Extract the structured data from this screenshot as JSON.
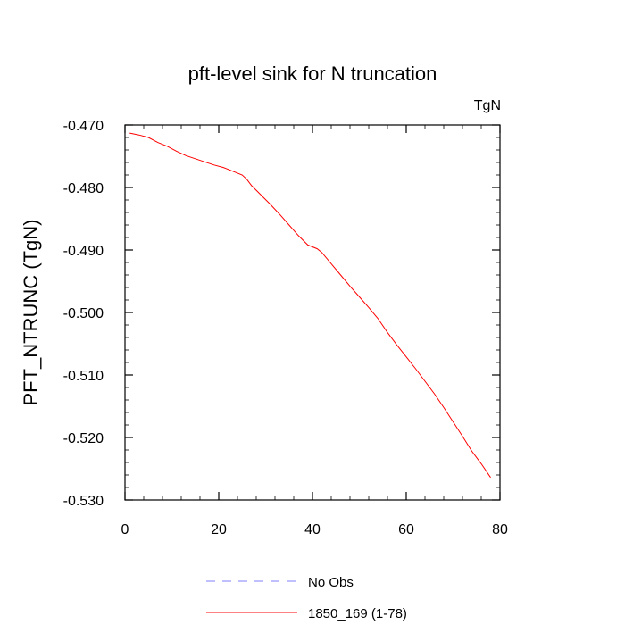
{
  "chart_data": {
    "type": "line",
    "title": "pft-level sink for N truncation",
    "units_label": "TgN",
    "xlabel": "",
    "ylabel": "PFT_NTRUNC  (TgN)",
    "xlim": [
      0,
      80
    ],
    "ylim": [
      -0.53,
      -0.47
    ],
    "x_ticks": [
      0,
      20,
      40,
      60,
      80
    ],
    "x_tick_labels": [
      "0",
      "20",
      "40",
      "60",
      "80"
    ],
    "y_ticks": [
      -0.47,
      -0.48,
      -0.49,
      -0.5,
      -0.51,
      -0.52,
      -0.53
    ],
    "y_tick_labels": [
      "-0.470",
      "-0.480",
      "-0.490",
      "-0.500",
      "-0.510",
      "-0.520",
      "-0.530"
    ],
    "grid": false,
    "legend_placement": "bottom",
    "legend": [
      {
        "label": "No Obs",
        "color": "#8080ff",
        "style": "dashed"
      },
      {
        "label": "1850_169 (1-78)",
        "color": "#ff0000",
        "style": "solid"
      }
    ],
    "series": [
      {
        "name": "1850_169 (1-78)",
        "color": "#ff0000",
        "x": [
          1,
          3,
          5,
          7,
          9,
          11,
          13,
          15,
          17,
          19,
          21,
          23,
          25,
          26,
          27,
          29,
          31,
          33,
          35,
          37,
          39,
          41,
          42,
          44,
          46,
          48,
          50,
          52,
          54,
          56,
          58,
          60,
          62,
          64,
          66,
          68,
          70,
          72,
          74,
          76,
          78
        ],
        "y": [
          -0.4713,
          -0.4716,
          -0.472,
          -0.4728,
          -0.4734,
          -0.4742,
          -0.4749,
          -0.4754,
          -0.4759,
          -0.4764,
          -0.4768,
          -0.4774,
          -0.478,
          -0.4787,
          -0.4797,
          -0.4812,
          -0.4827,
          -0.4843,
          -0.486,
          -0.4877,
          -0.4892,
          -0.4898,
          -0.4904,
          -0.4922,
          -0.494,
          -0.4958,
          -0.4975,
          -0.4992,
          -0.501,
          -0.5032,
          -0.5052,
          -0.5071,
          -0.509,
          -0.511,
          -0.513,
          -0.5152,
          -0.5175,
          -0.5198,
          -0.5222,
          -0.5242,
          -0.5264
        ]
      }
    ]
  }
}
